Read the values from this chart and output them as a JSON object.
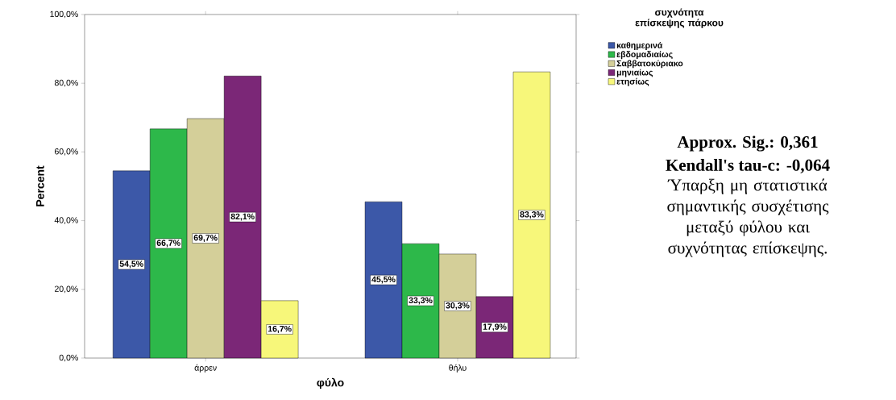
{
  "chart_data": {
    "type": "bar",
    "xlabel": "φύλο",
    "ylabel": "Percent",
    "legend_title": "συχνότητα επίσκεψης πάρκου",
    "categories": [
      "άρρεν",
      "θήλυ"
    ],
    "series": [
      {
        "name": "καθημερινά",
        "color": "#3c58a8",
        "values": [
          54.5,
          45.5
        ],
        "value_labels": [
          "54,5%",
          "45,5%"
        ]
      },
      {
        "name": "εβδομαδιαίως",
        "color": "#2db84a",
        "values": [
          66.7,
          33.3
        ],
        "value_labels": [
          "66,7%",
          "33,3%"
        ]
      },
      {
        "name": "Σαββατοκύριακο",
        "color": "#d4cf99",
        "values": [
          69.7,
          30.3
        ],
        "value_labels": [
          "69,7%",
          "30,3%"
        ]
      },
      {
        "name": "μηνιαίως",
        "color": "#7b2777",
        "values": [
          82.1,
          17.9
        ],
        "value_labels": [
          "82,1%",
          "17,9%"
        ]
      },
      {
        "name": "ετησίως",
        "color": "#f7f77a",
        "values": [
          16.7,
          83.3
        ],
        "value_labels": [
          "16,7%",
          "83,3%"
        ]
      }
    ],
    "ylim": [
      0,
      100
    ],
    "yticks": [
      {
        "value": 0,
        "label": "0,0%"
      },
      {
        "value": 20,
        "label": "20,0%"
      },
      {
        "value": 40,
        "label": "40,0%"
      },
      {
        "value": 60,
        "label": "60,0%"
      },
      {
        "value": 80,
        "label": "80,0%"
      },
      {
        "value": 100,
        "label": "100,0%"
      }
    ],
    "legend": "top right",
    "grid": false,
    "annotations": [
      "Approx. Sig.: 0,361",
      "Kendall's tau-c: -0,064",
      "Ύπαρξη μη στατιστικά σημαντικής συσχέτισης μεταξύ φύλου και συχνότητας επίσκεψης."
    ]
  }
}
